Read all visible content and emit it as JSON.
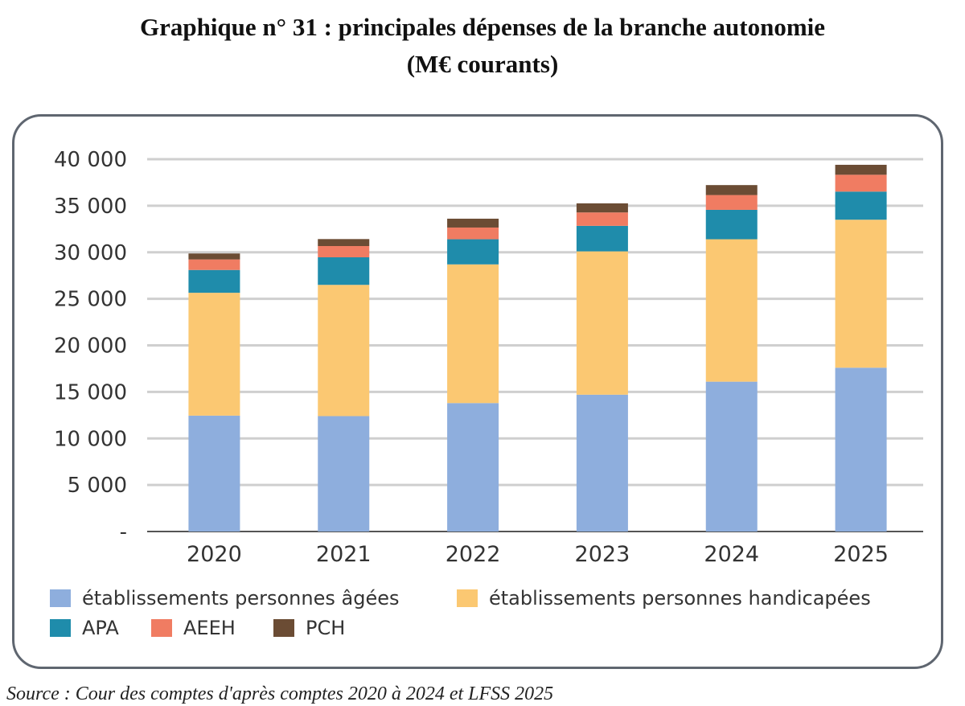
{
  "title_line1": "Graphique n° 31 : principales dépenses de la branche autonomie",
  "title_line2": "(M€ courants)",
  "source": "Source : Cour des comptes d'après comptes 2020 à 2024 et LFSS 2025",
  "chart_data": {
    "type": "bar",
    "stacked": true,
    "title": "Graphique n° 31 : principales dépenses de la branche autonomie (M€ courants)",
    "categories": [
      "2020",
      "2021",
      "2022",
      "2023",
      "2024",
      "2025"
    ],
    "ylim": [
      0,
      40000
    ],
    "yticks": [
      0,
      5000,
      10000,
      15000,
      20000,
      25000,
      30000,
      35000,
      40000
    ],
    "ytick_labels": [
      "-",
      "5 000",
      "10 000",
      "15 000",
      "20 000",
      "25 000",
      "30 000",
      "35 000",
      "40 000"
    ],
    "grid": true,
    "legend_position": "bottom",
    "series": [
      {
        "name": "établissements personnes âgées",
        "color": "#8eaedd",
        "values": [
          12450,
          12400,
          13800,
          14700,
          16100,
          17600
        ]
      },
      {
        "name": "établissements personnes handicapées",
        "color": "#fbc872",
        "values": [
          13200,
          14100,
          14900,
          15400,
          15300,
          15900
        ]
      },
      {
        "name": "APA",
        "color": "#1f8cab",
        "values": [
          2450,
          2960,
          2700,
          2740,
          3160,
          3020
        ]
      },
      {
        "name": "AEEH",
        "color": "#f07c62",
        "values": [
          1130,
          1210,
          1260,
          1440,
          1590,
          1810
        ]
      },
      {
        "name": "PCH",
        "color": "#6b4c34",
        "values": [
          640,
          750,
          950,
          980,
          1070,
          1070
        ]
      }
    ]
  }
}
